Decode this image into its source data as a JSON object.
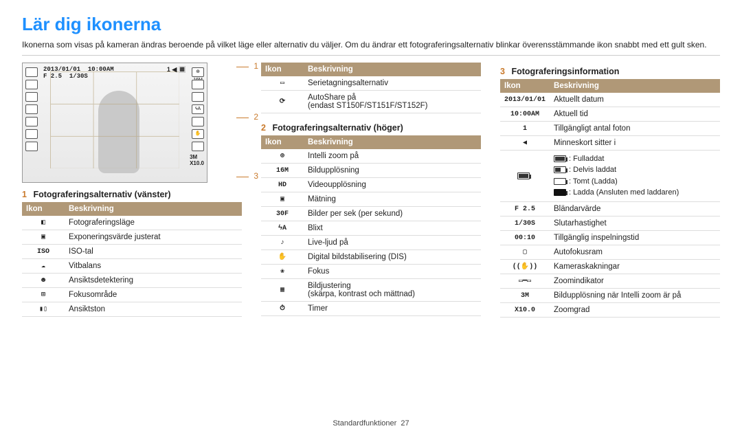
{
  "title": "Lär dig ikonerna",
  "intro": "Ikonerna som visas på kameran ändras beroende på vilket läge eller alternativ du väljer. Om du ändrar ett fotograferingsalternativ blinkar överensstämmande ikon snabbt med ett gult sken.",
  "camera": {
    "date": "2013/01/01",
    "time": "10:00AM",
    "fvalue": "F 2.5",
    "shutter": "1/30S",
    "topright_count": "1",
    "res": "3M",
    "zoom": "X10.0",
    "res_right": "16M"
  },
  "markers": {
    "m1": "1",
    "m2": "2",
    "m3": "3"
  },
  "table_header": {
    "icon": "Ikon",
    "desc": "Beskrivning"
  },
  "section1": {
    "num": "1",
    "title": "Fotograferingsalternativ (vänster)",
    "rows": [
      {
        "icon": "◧",
        "desc": "Fotograferingsläge"
      },
      {
        "icon": "▣",
        "desc": "Exponeringsvärde justerat"
      },
      {
        "icon": "ISO",
        "desc": "ISO-tal"
      },
      {
        "icon": "☁",
        "desc": "Vitbalans"
      },
      {
        "icon": "☻",
        "desc": "Ansiktsdetektering"
      },
      {
        "icon": "⊞",
        "desc": "Fokusområde"
      },
      {
        "icon": "▮▯",
        "desc": "Ansiktston"
      }
    ]
  },
  "section1b": {
    "rows": [
      {
        "icon": "▭",
        "desc": "Serietagningsalternativ"
      },
      {
        "icon": "⟳",
        "desc": "AutoShare på\n(endast ST150F/ST151F/ST152F)"
      }
    ]
  },
  "section2": {
    "num": "2",
    "title": "Fotograferingsalternativ (höger)",
    "rows": [
      {
        "icon": "⊕",
        "desc": "Intelli zoom på"
      },
      {
        "icon": "16M",
        "desc": "Bildupplösning"
      },
      {
        "icon": "HD",
        "desc": "Videoupplösning"
      },
      {
        "icon": "▣",
        "desc": "Mätning"
      },
      {
        "icon": "30F",
        "desc": "Bilder per sek (per sekund)"
      },
      {
        "icon": "ϟA",
        "desc": "Blixt"
      },
      {
        "icon": "♪",
        "desc": "Live-ljud på"
      },
      {
        "icon": "✋",
        "desc": "Digital bildstabilisering (DIS)"
      },
      {
        "icon": "❀",
        "desc": "Fokus"
      },
      {
        "icon": "▦",
        "desc": "Bildjustering\n(skärpa, kontrast och mättnad)"
      },
      {
        "icon": "⏱",
        "desc": "Timer"
      }
    ]
  },
  "section3": {
    "num": "3",
    "title": "Fotograferingsinformation",
    "rows": [
      {
        "icon": "2013/01/01",
        "desc": "Aktuellt datum"
      },
      {
        "icon": "10:00AM",
        "desc": "Aktuell tid"
      },
      {
        "icon": "1",
        "desc": "Tillgängligt antal foton"
      },
      {
        "icon": "◀",
        "desc": "Minneskort sitter i"
      }
    ],
    "battery": {
      "full": ": Fulladdat",
      "half": ": Delvis laddat",
      "empty": ": Tomt (Ladda)",
      "charge": ": Ladda (Ansluten med laddaren)"
    },
    "rows_after": [
      {
        "icon": "F 2.5",
        "desc": "Bländarvärde"
      },
      {
        "icon": "1/30S",
        "desc": "Slutarhastighet"
      },
      {
        "icon": "00:10",
        "desc": "Tillgänglig inspelningstid"
      },
      {
        "icon": "▢",
        "desc": "Autofokusram"
      },
      {
        "icon": "((✋))",
        "desc": "Kameraskakningar"
      },
      {
        "icon": "▭━▭",
        "desc": "Zoomindikator"
      },
      {
        "icon": "3M",
        "desc": "Bildupplösning när Intelli zoom är på"
      },
      {
        "icon": "X10.0",
        "desc": "Zoomgrad"
      }
    ]
  },
  "footer": {
    "label": "Standardfunktioner",
    "page": "27"
  },
  "colors": {
    "accent": "#1e90ff",
    "secnum": "#c97a2c",
    "header_bg": "#b09877"
  }
}
